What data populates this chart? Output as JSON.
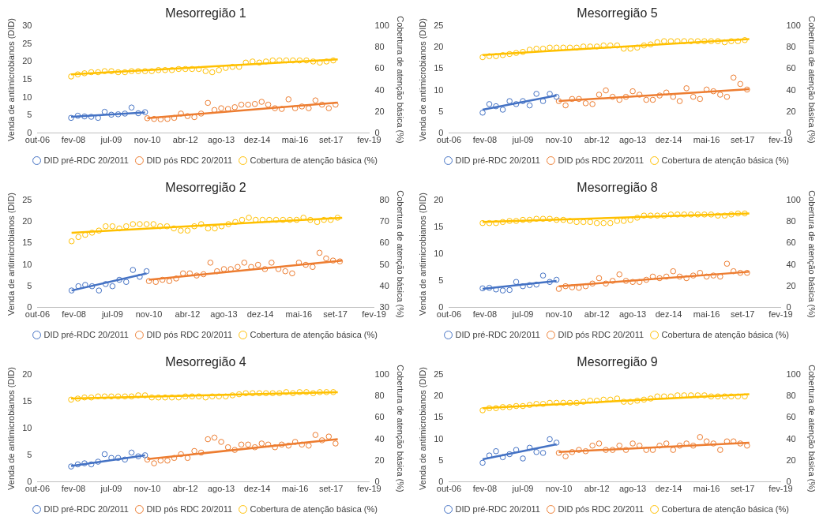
{
  "chart_data": [
    {
      "type": "scatter",
      "title": "Mesorregião 1",
      "ylabel": "Venda de antimicrobianos (DID)",
      "y2label": "Cobertura de atenção básica (%)",
      "legend": "bottom",
      "grid": false,
      "marker": "circle",
      "xlim": [
        "2006-10",
        "2019-02"
      ],
      "xticks": [
        {
          "value": "2006-10",
          "label": "out-06"
        },
        {
          "value": "2008-02",
          "label": "fev-08"
        },
        {
          "value": "2009-07",
          "label": "jul-09"
        },
        {
          "value": "2010-11",
          "label": "nov-10"
        },
        {
          "value": "2012-04",
          "label": "abr-12"
        },
        {
          "value": "2013-08",
          "label": "ago-13"
        },
        {
          "value": "2014-12",
          "label": "dez-14"
        },
        {
          "value": "2016-05",
          "label": "mai-16"
        },
        {
          "value": "2017-09",
          "label": "set-17"
        },
        {
          "value": "2019-02",
          "label": "fev-19"
        }
      ],
      "ylim": [
        0,
        30
      ],
      "yticks": [
        0,
        5,
        10,
        15,
        20,
        25,
        30
      ],
      "y2lim": [
        0,
        100
      ],
      "y2ticks": [
        0,
        20,
        40,
        60,
        80,
        100
      ],
      "series": [
        {
          "name": "DID pré-RDC 20/2011",
          "type": "scatter",
          "color": "#4472c4",
          "x": [
            "2008-01",
            "2008-04",
            "2008-07",
            "2008-10",
            "2009-01",
            "2009-04",
            "2009-07",
            "2009-10",
            "2010-01",
            "2010-04",
            "2010-07",
            "2010-10"
          ],
          "values": [
            4.3,
            4.9,
            4.7,
            4.6,
            4.3,
            6.0,
            5.2,
            5.3,
            5.5,
            7.2,
            5.6,
            5.9
          ]
        },
        {
          "name": "DID pós RDC 20/2011",
          "type": "scatter",
          "color": "#ed7d31",
          "x": [
            "2010-11",
            "2011-02",
            "2011-05",
            "2011-08",
            "2011-11",
            "2012-02",
            "2012-05",
            "2012-08",
            "2012-11",
            "2013-02",
            "2013-05",
            "2013-08",
            "2013-11",
            "2014-02",
            "2014-05",
            "2014-08",
            "2014-11",
            "2015-02",
            "2015-05",
            "2015-08",
            "2015-11",
            "2016-02",
            "2016-05",
            "2016-08",
            "2016-11",
            "2017-02",
            "2017-05",
            "2017-08",
            "2017-11"
          ],
          "values": [
            4.2,
            4.0,
            3.9,
            4.0,
            4.3,
            5.5,
            4.8,
            4.5,
            5.5,
            8.5,
            6.5,
            7.0,
            6.8,
            7.3,
            8.0,
            8.0,
            8.2,
            8.8,
            8.0,
            7.0,
            6.8,
            9.5,
            7.0,
            7.5,
            7.0,
            9.2,
            8.0,
            7.0,
            8.0
          ]
        },
        {
          "name": "Cobertura de atenção básica (%)",
          "type": "scatter",
          "axis": "y2",
          "color": "#ffc000",
          "x": [
            "2008-01",
            "2008-04",
            "2008-07",
            "2008-10",
            "2009-01",
            "2009-04",
            "2009-07",
            "2009-10",
            "2010-01",
            "2010-04",
            "2010-07",
            "2010-10",
            "2011-01",
            "2011-04",
            "2011-07",
            "2011-10",
            "2012-01",
            "2012-04",
            "2012-07",
            "2012-10",
            "2013-01",
            "2013-04",
            "2013-07",
            "2013-10",
            "2014-01",
            "2014-04",
            "2014-07",
            "2014-10",
            "2015-01",
            "2015-04",
            "2015-07",
            "2015-10",
            "2016-01",
            "2016-04",
            "2016-07",
            "2016-10",
            "2017-01",
            "2017-04",
            "2017-07",
            "2017-10"
          ],
          "values": [
            53,
            55,
            56,
            57,
            57,
            58,
            58,
            57,
            57,
            58,
            58,
            58,
            58,
            59,
            59,
            59,
            60,
            60,
            60,
            60,
            58,
            57,
            59,
            61,
            62,
            62,
            66,
            67,
            66,
            67,
            68,
            68,
            68,
            68,
            68,
            68,
            67,
            66,
            67,
            68
          ]
        },
        {
          "type": "line",
          "marker": "none",
          "color": "#4472c4",
          "x": [
            "2008-01",
            "2010-10"
          ],
          "values": [
            4.6,
            5.8
          ]
        },
        {
          "type": "line",
          "marker": "none",
          "color": "#ed7d31",
          "x": [
            "2010-11",
            "2017-12"
          ],
          "values": [
            4.2,
            8.6
          ]
        },
        {
          "type": "line",
          "marker": "none",
          "axis": "y2",
          "color": "#ffc000",
          "x": [
            "2008-01",
            "2017-12"
          ],
          "values": [
            55,
            69
          ]
        }
      ]
    },
    {
      "type": "scatter",
      "title": "Mesorregião 5",
      "ylabel": "Venda de antimicrobianos (DID)",
      "y2label": "Cobertura de atenção básica (%)",
      "legend": "bottom",
      "grid": false,
      "marker": "circle",
      "xlim": [
        "2006-10",
        "2019-02"
      ],
      "xticks": [
        {
          "value": "2006-10",
          "label": "out-06"
        },
        {
          "value": "2008-02",
          "label": "fev-08"
        },
        {
          "value": "2009-07",
          "label": "jul-09"
        },
        {
          "value": "2010-11",
          "label": "nov-10"
        },
        {
          "value": "2012-04",
          "label": "abr-12"
        },
        {
          "value": "2013-08",
          "label": "ago-13"
        },
        {
          "value": "2014-12",
          "label": "dez-14"
        },
        {
          "value": "2016-05",
          "label": "mai-16"
        },
        {
          "value": "2017-09",
          "label": "set-17"
        },
        {
          "value": "2019-02",
          "label": "fev-19"
        }
      ],
      "ylim": [
        0,
        25
      ],
      "yticks": [
        0,
        5,
        10,
        15,
        20,
        25
      ],
      "y2lim": [
        0,
        100
      ],
      "y2ticks": [
        0,
        20,
        40,
        60,
        80,
        100
      ],
      "series": [
        {
          "name": "DID pré-RDC 20/2011",
          "type": "scatter",
          "color": "#4472c4",
          "x": [
            "2008-01",
            "2008-04",
            "2008-07",
            "2008-10",
            "2009-01",
            "2009-04",
            "2009-07",
            "2009-10",
            "2010-01",
            "2010-04",
            "2010-07",
            "2010-10"
          ],
          "values": [
            4.8,
            6.8,
            6.3,
            5.5,
            7.5,
            6.8,
            7.5,
            6.5,
            9.2,
            7.5,
            9.2,
            8.5
          ]
        },
        {
          "name": "DID pós RDC 20/2011",
          "type": "scatter",
          "color": "#ed7d31",
          "x": [
            "2010-11",
            "2011-02",
            "2011-05",
            "2011-08",
            "2011-11",
            "2012-02",
            "2012-05",
            "2012-08",
            "2012-11",
            "2013-02",
            "2013-05",
            "2013-08",
            "2013-11",
            "2014-02",
            "2014-05",
            "2014-08",
            "2014-11",
            "2015-02",
            "2015-05",
            "2015-08",
            "2015-11",
            "2016-02",
            "2016-05",
            "2016-08",
            "2016-11",
            "2017-02",
            "2017-05",
            "2017-08",
            "2017-11"
          ],
          "values": [
            7.5,
            6.5,
            8.0,
            8.0,
            7.0,
            6.8,
            9.0,
            10.0,
            8.5,
            7.8,
            8.5,
            9.8,
            9.0,
            7.8,
            7.8,
            8.8,
            9.5,
            8.5,
            7.5,
            10.5,
            8.5,
            8.0,
            10.2,
            9.8,
            9.0,
            8.5,
            13.0,
            11.5,
            10.2
          ]
        },
        {
          "name": "Cobertura de atenção básica (%)",
          "type": "scatter",
          "axis": "y2",
          "color": "#ffc000",
          "x": [
            "2008-01",
            "2008-04",
            "2008-07",
            "2008-10",
            "2009-01",
            "2009-04",
            "2009-07",
            "2009-10",
            "2010-01",
            "2010-04",
            "2010-07",
            "2010-10",
            "2011-01",
            "2011-04",
            "2011-07",
            "2011-10",
            "2012-01",
            "2012-04",
            "2012-07",
            "2012-10",
            "2013-01",
            "2013-04",
            "2013-07",
            "2013-10",
            "2014-01",
            "2014-04",
            "2014-07",
            "2014-10",
            "2015-01",
            "2015-04",
            "2015-07",
            "2015-10",
            "2016-01",
            "2016-04",
            "2016-07",
            "2016-10",
            "2017-01",
            "2017-04",
            "2017-07",
            "2017-10"
          ],
          "values": [
            71,
            72,
            72,
            73,
            74,
            75,
            76,
            78,
            79,
            79,
            80,
            80,
            80,
            80,
            80,
            81,
            81,
            81,
            82,
            82,
            82,
            79,
            79,
            80,
            82,
            83,
            85,
            86,
            86,
            86,
            86,
            86,
            86,
            86,
            86,
            86,
            85,
            86,
            86,
            87
          ]
        },
        {
          "type": "line",
          "marker": "none",
          "color": "#4472c4",
          "x": [
            "2008-01",
            "2010-10"
          ],
          "values": [
            5.5,
            8.8
          ]
        },
        {
          "type": "line",
          "marker": "none",
          "color": "#ed7d31",
          "x": [
            "2010-11",
            "2017-12"
          ],
          "values": [
            7.5,
            10.3
          ]
        },
        {
          "type": "line",
          "marker": "none",
          "axis": "y2",
          "color": "#ffc000",
          "x": [
            "2008-01",
            "2017-12"
          ],
          "values": [
            73,
            88
          ]
        }
      ]
    },
    {
      "type": "scatter",
      "title": "Mesorregião 2",
      "ylabel": "Venda de antimicrobianos (DID)",
      "y2label": "Cobertura de atenção básica (%)",
      "legend": "bottom",
      "grid": false,
      "marker": "circle",
      "xlim": [
        "2006-10",
        "2019-02"
      ],
      "xticks": [
        {
          "value": "2006-10",
          "label": "out-06"
        },
        {
          "value": "2008-02",
          "label": "fev-08"
        },
        {
          "value": "2009-07",
          "label": "jul-09"
        },
        {
          "value": "2010-11",
          "label": "nov-10"
        },
        {
          "value": "2012-04",
          "label": "abr-12"
        },
        {
          "value": "2013-08",
          "label": "ago-13"
        },
        {
          "value": "2014-12",
          "label": "dez-14"
        },
        {
          "value": "2016-05",
          "label": "mai-16"
        },
        {
          "value": "2017-09",
          "label": "set-17"
        },
        {
          "value": "2019-02",
          "label": "fev-19"
        }
      ],
      "ylim": [
        0,
        25
      ],
      "yticks": [
        0,
        5,
        10,
        15,
        20,
        25
      ],
      "y2lim": [
        30,
        80
      ],
      "y2ticks": [
        30,
        40,
        50,
        60,
        70,
        80
      ],
      "series": [
        {
          "name": "DID pré-RDC 20/2011",
          "type": "scatter",
          "color": "#4472c4",
          "x": [
            "2008-01",
            "2008-04",
            "2008-07",
            "2008-10",
            "2009-01",
            "2009-04",
            "2009-07",
            "2009-10",
            "2010-01",
            "2010-04",
            "2010-07",
            "2010-10"
          ],
          "values": [
            4.0,
            5.0,
            5.3,
            5.0,
            4.0,
            5.5,
            5.0,
            6.5,
            6.0,
            8.8,
            7.2,
            8.5
          ]
        },
        {
          "name": "DID pós RDC 20/2011",
          "type": "scatter",
          "color": "#ed7d31",
          "x": [
            "2010-11",
            "2011-02",
            "2011-05",
            "2011-08",
            "2011-11",
            "2012-02",
            "2012-05",
            "2012-08",
            "2012-11",
            "2013-02",
            "2013-05",
            "2013-08",
            "2013-11",
            "2014-02",
            "2014-05",
            "2014-08",
            "2014-11",
            "2015-02",
            "2015-05",
            "2015-08",
            "2015-11",
            "2016-02",
            "2016-05",
            "2016-08",
            "2016-11",
            "2017-02",
            "2017-05",
            "2017-08",
            "2017-11"
          ],
          "values": [
            6.2,
            6.0,
            6.5,
            6.2,
            6.8,
            8.0,
            8.0,
            7.5,
            7.8,
            10.5,
            8.5,
            9.0,
            9.0,
            9.5,
            10.5,
            9.5,
            10.0,
            9.0,
            10.5,
            9.0,
            8.5,
            8.0,
            10.5,
            10.0,
            9.5,
            12.8,
            11.5,
            11.0,
            10.8
          ]
        },
        {
          "name": "Cobertura de atenção básica (%)",
          "type": "scatter",
          "axis": "y2",
          "color": "#ffc000",
          "x": [
            "2008-01",
            "2008-04",
            "2008-07",
            "2008-10",
            "2009-01",
            "2009-04",
            "2009-07",
            "2009-10",
            "2010-01",
            "2010-04",
            "2010-07",
            "2010-10",
            "2011-01",
            "2011-04",
            "2011-07",
            "2011-10",
            "2012-01",
            "2012-04",
            "2012-07",
            "2012-10",
            "2013-01",
            "2013-04",
            "2013-07",
            "2013-10",
            "2014-01",
            "2014-04",
            "2014-07",
            "2014-10",
            "2015-01",
            "2015-04",
            "2015-07",
            "2015-10",
            "2016-01",
            "2016-04",
            "2016-07",
            "2016-10",
            "2017-01",
            "2017-04",
            "2017-07",
            "2017-10"
          ],
          "values": [
            61,
            63,
            64,
            65,
            66,
            68,
            68,
            67,
            68,
            69,
            69,
            69,
            69,
            68,
            68,
            67,
            66,
            66,
            68,
            69,
            67,
            67,
            68,
            69,
            70,
            71,
            72,
            71,
            71,
            71,
            71,
            71,
            71,
            71,
            72,
            71,
            70,
            71,
            71,
            72
          ]
        },
        {
          "type": "line",
          "marker": "none",
          "color": "#4472c4",
          "x": [
            "2008-01",
            "2010-10"
          ],
          "values": [
            4.0,
            8.0
          ]
        },
        {
          "type": "line",
          "marker": "none",
          "color": "#ed7d31",
          "x": [
            "2010-11",
            "2017-12"
          ],
          "values": [
            6.5,
            11.0
          ]
        },
        {
          "type": "line",
          "marker": "none",
          "axis": "y2",
          "color": "#ffc000",
          "x": [
            "2008-01",
            "2017-12"
          ],
          "values": [
            65,
            72
          ]
        }
      ]
    },
    {
      "type": "scatter",
      "title": "Mesorregião 8",
      "ylabel": "Venda de antimicrobianos (DID)",
      "y2label": "Cobertura de atenção básica (%)",
      "legend": "bottom",
      "grid": false,
      "marker": "circle",
      "xlim": [
        "2006-10",
        "2019-02"
      ],
      "xticks": [
        {
          "value": "2006-10",
          "label": "out-06"
        },
        {
          "value": "2008-02",
          "label": "fev-08"
        },
        {
          "value": "2009-07",
          "label": "jul-09"
        },
        {
          "value": "2010-11",
          "label": "nov-10"
        },
        {
          "value": "2012-04",
          "label": "abr-12"
        },
        {
          "value": "2013-08",
          "label": "ago-13"
        },
        {
          "value": "2014-12",
          "label": "dez-14"
        },
        {
          "value": "2016-05",
          "label": "mai-16"
        },
        {
          "value": "2017-09",
          "label": "set-17"
        },
        {
          "value": "2019-02",
          "label": "fev-19"
        }
      ],
      "ylim": [
        0,
        20
      ],
      "yticks": [
        0,
        5,
        10,
        15,
        20
      ],
      "y2lim": [
        0,
        100
      ],
      "y2ticks": [
        0,
        20,
        40,
        60,
        80,
        100
      ],
      "series": [
        {
          "name": "DID pré-RDC 20/2011",
          "type": "scatter",
          "color": "#4472c4",
          "x": [
            "2008-01",
            "2008-04",
            "2008-07",
            "2008-10",
            "2009-01",
            "2009-04",
            "2009-07",
            "2009-10",
            "2010-01",
            "2010-04",
            "2010-07",
            "2010-10"
          ],
          "values": [
            3.6,
            3.7,
            3.4,
            3.2,
            3.3,
            4.8,
            4.0,
            4.2,
            4.3,
            6.0,
            4.8,
            5.2
          ]
        },
        {
          "name": "DID pós RDC 20/2011",
          "type": "scatter",
          "color": "#ed7d31",
          "x": [
            "2010-11",
            "2011-02",
            "2011-05",
            "2011-08",
            "2011-11",
            "2012-02",
            "2012-05",
            "2012-08",
            "2012-11",
            "2013-02",
            "2013-05",
            "2013-08",
            "2013-11",
            "2014-02",
            "2014-05",
            "2014-08",
            "2014-11",
            "2015-02",
            "2015-05",
            "2015-08",
            "2015-11",
            "2016-02",
            "2016-05",
            "2016-08",
            "2016-11",
            "2017-02",
            "2017-05",
            "2017-08",
            "2017-11"
          ],
          "values": [
            3.5,
            4.0,
            3.8,
            3.7,
            4.0,
            4.5,
            5.5,
            4.5,
            5.0,
            6.2,
            5.0,
            4.8,
            4.8,
            5.2,
            5.8,
            5.5,
            5.8,
            6.8,
            5.8,
            5.5,
            6.0,
            6.5,
            5.8,
            6.0,
            5.8,
            8.2,
            6.8,
            6.5,
            6.5
          ]
        },
        {
          "name": "Cobertura de atenção básica (%)",
          "type": "scatter",
          "axis": "y2",
          "color": "#ffc000",
          "x": [
            "2008-01",
            "2008-04",
            "2008-07",
            "2008-10",
            "2009-01",
            "2009-04",
            "2009-07",
            "2009-10",
            "2010-01",
            "2010-04",
            "2010-07",
            "2010-10",
            "2011-01",
            "2011-04",
            "2011-07",
            "2011-10",
            "2012-01",
            "2012-04",
            "2012-07",
            "2012-10",
            "2013-01",
            "2013-04",
            "2013-07",
            "2013-10",
            "2014-01",
            "2014-04",
            "2014-07",
            "2014-10",
            "2015-01",
            "2015-04",
            "2015-07",
            "2015-10",
            "2016-01",
            "2016-04",
            "2016-07",
            "2016-10",
            "2017-01",
            "2017-04",
            "2017-07",
            "2017-10"
          ],
          "values": [
            79,
            79,
            79,
            80,
            81,
            81,
            82,
            82,
            83,
            83,
            83,
            82,
            82,
            81,
            80,
            80,
            80,
            79,
            79,
            79,
            81,
            81,
            82,
            84,
            86,
            86,
            86,
            86,
            87,
            87,
            87,
            87,
            87,
            87,
            87,
            86,
            86,
            87,
            88,
            88
          ]
        },
        {
          "type": "line",
          "marker": "none",
          "color": "#4472c4",
          "x": [
            "2008-01",
            "2010-10"
          ],
          "values": [
            3.5,
            5.0
          ]
        },
        {
          "type": "line",
          "marker": "none",
          "color": "#ed7d31",
          "x": [
            "2010-11",
            "2017-12"
          ],
          "values": [
            4.0,
            6.7
          ]
        },
        {
          "type": "line",
          "marker": "none",
          "axis": "y2",
          "color": "#ffc000",
          "x": [
            "2008-01",
            "2017-12"
          ],
          "values": [
            80,
            88
          ]
        }
      ]
    },
    {
      "type": "scatter",
      "title": "Mesorregião 4",
      "ylabel": "Venda de antimicrobianos (DID)",
      "y2label": "Cobertura de atenção básica (%)",
      "legend": "bottom",
      "grid": false,
      "marker": "circle",
      "xlim": [
        "2006-10",
        "2019-02"
      ],
      "xticks": [
        {
          "value": "2006-10",
          "label": "out-06"
        },
        {
          "value": "2008-02",
          "label": "fev-08"
        },
        {
          "value": "2009-07",
          "label": "jul-09"
        },
        {
          "value": "2010-11",
          "label": "nov-10"
        },
        {
          "value": "2012-04",
          "label": "abr-12"
        },
        {
          "value": "2013-08",
          "label": "ago-13"
        },
        {
          "value": "2014-12",
          "label": "dez-14"
        },
        {
          "value": "2016-05",
          "label": "mai-16"
        },
        {
          "value": "2017-09",
          "label": "set-17"
        },
        {
          "value": "2019-02",
          "label": "fev-19"
        }
      ],
      "ylim": [
        0,
        20
      ],
      "yticks": [
        0,
        5,
        10,
        15,
        20
      ],
      "y2lim": [
        0,
        100
      ],
      "y2ticks": [
        0,
        20,
        40,
        60,
        80,
        100
      ],
      "series": [
        {
          "name": "DID pré-RDC 20/2011",
          "type": "scatter",
          "color": "#4472c4",
          "x": [
            "2008-01",
            "2008-04",
            "2008-07",
            "2008-10",
            "2009-01",
            "2009-04",
            "2009-07",
            "2009-10",
            "2010-01",
            "2010-04",
            "2010-07",
            "2010-10"
          ],
          "values": [
            2.9,
            3.3,
            3.5,
            3.3,
            3.8,
            5.2,
            4.5,
            4.5,
            4.2,
            5.5,
            4.8,
            5.0
          ]
        },
        {
          "name": "DID pós RDC 20/2011",
          "type": "scatter",
          "color": "#ed7d31",
          "x": [
            "2010-11",
            "2011-02",
            "2011-05",
            "2011-08",
            "2011-11",
            "2012-02",
            "2012-05",
            "2012-08",
            "2012-11",
            "2013-02",
            "2013-05",
            "2013-08",
            "2013-11",
            "2014-02",
            "2014-05",
            "2014-08",
            "2014-11",
            "2015-02",
            "2015-05",
            "2015-08",
            "2015-11",
            "2016-02",
            "2016-05",
            "2016-08",
            "2016-11",
            "2017-02",
            "2017-05",
            "2017-08",
            "2017-11"
          ],
          "values": [
            4.2,
            3.5,
            4.0,
            4.0,
            4.5,
            5.2,
            4.5,
            5.8,
            5.5,
            8.0,
            8.3,
            7.5,
            6.5,
            6.0,
            7.0,
            7.0,
            6.5,
            7.2,
            7.0,
            6.5,
            7.0,
            6.8,
            7.5,
            7.0,
            6.8,
            8.8,
            7.8,
            8.5,
            7.2
          ]
        },
        {
          "name": "Cobertura de atenção básica (%)",
          "type": "scatter",
          "axis": "y2",
          "color": "#ffc000",
          "x": [
            "2008-01",
            "2008-04",
            "2008-07",
            "2008-10",
            "2009-01",
            "2009-04",
            "2009-07",
            "2009-10",
            "2010-01",
            "2010-04",
            "2010-07",
            "2010-10",
            "2011-01",
            "2011-04",
            "2011-07",
            "2011-10",
            "2012-01",
            "2012-04",
            "2012-07",
            "2012-10",
            "2013-01",
            "2013-04",
            "2013-07",
            "2013-10",
            "2014-01",
            "2014-04",
            "2014-07",
            "2014-10",
            "2015-01",
            "2015-04",
            "2015-07",
            "2015-10",
            "2016-01",
            "2016-04",
            "2016-07",
            "2016-10",
            "2017-01",
            "2017-04",
            "2017-07",
            "2017-10"
          ],
          "values": [
            77,
            78,
            79,
            79,
            80,
            80,
            80,
            80,
            80,
            80,
            81,
            81,
            79,
            79,
            79,
            79,
            79,
            80,
            80,
            80,
            79,
            80,
            80,
            80,
            81,
            82,
            83,
            83,
            83,
            83,
            83,
            83,
            84,
            83,
            84,
            84,
            83,
            84,
            84,
            84
          ]
        },
        {
          "type": "line",
          "marker": "none",
          "color": "#4472c4",
          "x": [
            "2008-01",
            "2010-10"
          ],
          "values": [
            3.0,
            5.0
          ]
        },
        {
          "type": "line",
          "marker": "none",
          "color": "#ed7d31",
          "x": [
            "2010-11",
            "2017-12"
          ],
          "values": [
            4.3,
            8.0
          ]
        },
        {
          "type": "line",
          "marker": "none",
          "axis": "y2",
          "color": "#ffc000",
          "x": [
            "2008-01",
            "2017-12"
          ],
          "values": [
            78,
            84
          ]
        }
      ]
    },
    {
      "type": "scatter",
      "title": "Mesorregião 9",
      "ylabel": "Venda de antimicrobianos (DID)",
      "y2label": "Cobertura de atenção básica (%)",
      "legend": "bottom",
      "grid": false,
      "marker": "circle",
      "xlim": [
        "2006-10",
        "2019-02"
      ],
      "xticks": [
        {
          "value": "2006-10",
          "label": "out-06"
        },
        {
          "value": "2008-02",
          "label": "fev-08"
        },
        {
          "value": "2009-07",
          "label": "jul-09"
        },
        {
          "value": "2010-11",
          "label": "nov-10"
        },
        {
          "value": "2012-04",
          "label": "abr-12"
        },
        {
          "value": "2013-08",
          "label": "ago-13"
        },
        {
          "value": "2014-12",
          "label": "dez-14"
        },
        {
          "value": "2016-05",
          "label": "mai-16"
        },
        {
          "value": "2017-09",
          "label": "set-17"
        },
        {
          "value": "2019-02",
          "label": "fev-19"
        }
      ],
      "ylim": [
        0,
        25
      ],
      "yticks": [
        0,
        5,
        10,
        15,
        20,
        25
      ],
      "y2lim": [
        0,
        100
      ],
      "y2ticks": [
        0,
        20,
        40,
        60,
        80,
        100
      ],
      "series": [
        {
          "name": "DID pré-RDC 20/2011",
          "type": "scatter",
          "color": "#4472c4",
          "x": [
            "2008-01",
            "2008-04",
            "2008-07",
            "2008-10",
            "2009-01",
            "2009-04",
            "2009-07",
            "2009-10",
            "2010-01",
            "2010-04",
            "2010-07",
            "2010-10"
          ],
          "values": [
            4.5,
            6.2,
            7.2,
            5.8,
            6.5,
            7.5,
            5.5,
            8.0,
            7.0,
            6.8,
            10.0,
            9.2
          ]
        },
        {
          "name": "DID pós RDC 20/2011",
          "type": "scatter",
          "color": "#ed7d31",
          "x": [
            "2010-11",
            "2011-02",
            "2011-05",
            "2011-08",
            "2011-11",
            "2012-02",
            "2012-05",
            "2012-08",
            "2012-11",
            "2013-02",
            "2013-05",
            "2013-08",
            "2013-11",
            "2014-02",
            "2014-05",
            "2014-08",
            "2014-11",
            "2015-02",
            "2015-05",
            "2015-08",
            "2015-11",
            "2016-02",
            "2016-05",
            "2016-08",
            "2016-11",
            "2017-02",
            "2017-05",
            "2017-08",
            "2017-11"
          ],
          "values": [
            6.8,
            6.0,
            7.0,
            7.5,
            7.2,
            8.5,
            9.0,
            7.5,
            7.5,
            8.5,
            7.5,
            9.0,
            8.5,
            7.5,
            7.5,
            8.5,
            9.0,
            7.5,
            8.5,
            9.0,
            8.5,
            10.5,
            9.5,
            9.0,
            7.5,
            9.5,
            9.5,
            9.0,
            8.5
          ]
        },
        {
          "name": "Cobertura de atenção básica (%)",
          "type": "scatter",
          "axis": "y2",
          "color": "#ffc000",
          "x": [
            "2008-01",
            "2008-04",
            "2008-07",
            "2008-10",
            "2009-01",
            "2009-04",
            "2009-07",
            "2009-10",
            "2010-01",
            "2010-04",
            "2010-07",
            "2010-10",
            "2011-01",
            "2011-04",
            "2011-07",
            "2011-10",
            "2012-01",
            "2012-04",
            "2012-07",
            "2012-10",
            "2013-01",
            "2013-04",
            "2013-07",
            "2013-10",
            "2014-01",
            "2014-04",
            "2014-07",
            "2014-10",
            "2015-01",
            "2015-04",
            "2015-07",
            "2015-10",
            "2016-01",
            "2016-04",
            "2016-07",
            "2016-10",
            "2017-01",
            "2017-04",
            "2017-07",
            "2017-10"
          ],
          "values": [
            67,
            69,
            69,
            70,
            70,
            71,
            71,
            72,
            73,
            73,
            74,
            74,
            74,
            74,
            74,
            75,
            76,
            76,
            77,
            77,
            78,
            75,
            75,
            76,
            77,
            78,
            80,
            80,
            80,
            81,
            81,
            81,
            81,
            81,
            80,
            80,
            80,
            80,
            80,
            80
          ]
        },
        {
          "type": "line",
          "marker": "none",
          "color": "#4472c4",
          "x": [
            "2008-01",
            "2010-10"
          ],
          "values": [
            5.3,
            8.8
          ]
        },
        {
          "type": "line",
          "marker": "none",
          "color": "#ed7d31",
          "x": [
            "2010-11",
            "2017-12"
          ],
          "values": [
            7.0,
            9.2
          ]
        },
        {
          "type": "line",
          "marker": "none",
          "axis": "y2",
          "color": "#ffc000",
          "x": [
            "2008-01",
            "2017-12"
          ],
          "values": [
            69,
            82
          ]
        }
      ]
    }
  ]
}
